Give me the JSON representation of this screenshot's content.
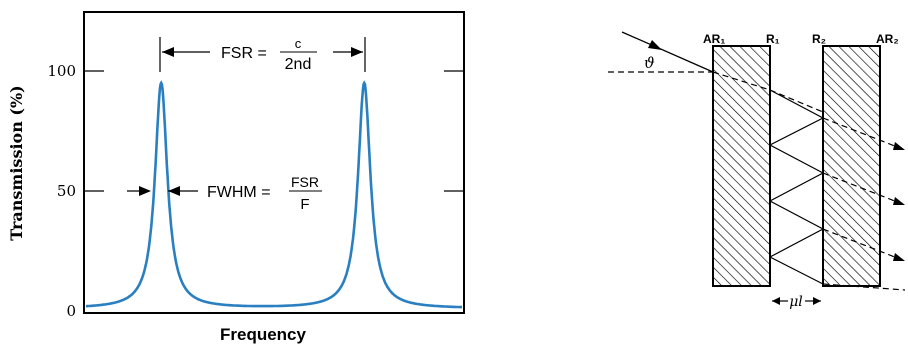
{
  "left_panel": {
    "chart_data": {
      "type": "line",
      "xlabel": "Frequency",
      "ylabel": "Transmission (%)",
      "yticks": [
        "0",
        "50",
        "100"
      ],
      "ylim": [
        0,
        120
      ],
      "peak_transmission": 95,
      "baseline_transmission": 1,
      "series": [
        {
          "color": "#2a7fc1",
          "peaks_x": [
            0.2,
            0.74
          ],
          "fwhm_fraction": 0.04
        }
      ],
      "annotations": {
        "fsr_prefix": "FSR =",
        "fsr_numerator": "c",
        "fsr_denominator": "2nd",
        "fwhm_prefix": "FWHM =",
        "fwhm_numerator": "FSR",
        "fwhm_denominator": "F"
      }
    }
  },
  "right_panel": {
    "labels": {
      "ar1": "AR₁",
      "r1": "R₁",
      "r2": "R₂",
      "ar2": "AR₂",
      "angle": "ϑ",
      "gap": "μl"
    }
  }
}
